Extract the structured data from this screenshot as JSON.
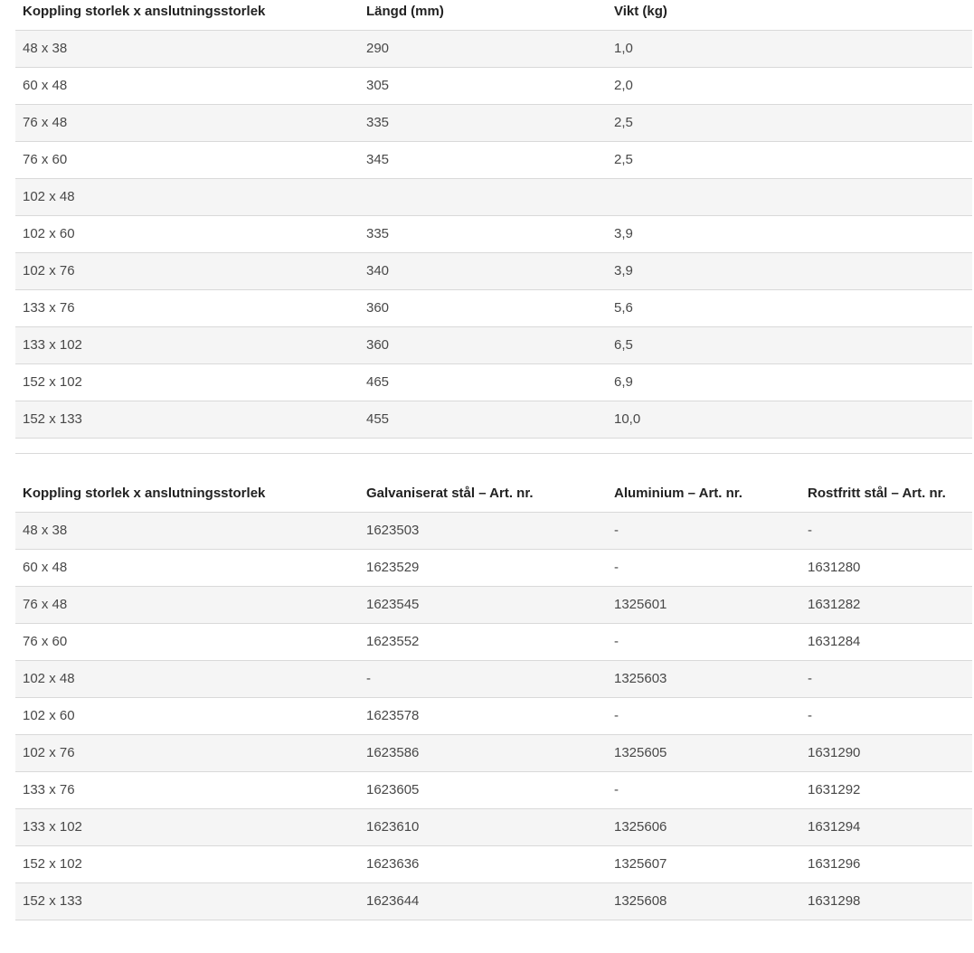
{
  "colors": {
    "stripe_row_background": "#f5f5f5",
    "row_border": "#d9d9d9",
    "header_text": "#222222",
    "body_text": "#484848",
    "page_background": "#ffffff"
  },
  "tables": [
    {
      "name": "dimensions-table",
      "headers": [
        "Koppling storlek x anslutningsstorlek",
        "Längd (mm)",
        "Vikt (kg)"
      ],
      "rows": [
        [
          "48 x 38",
          "290",
          "1,0"
        ],
        [
          "60 x 48",
          "305",
          "2,0"
        ],
        [
          "76 x 48",
          "335",
          "2,5"
        ],
        [
          "76 x 60",
          "345",
          "2,5"
        ],
        [
          "102 x 48",
          "",
          ""
        ],
        [
          "102 x 60",
          "335",
          "3,9"
        ],
        [
          "102 x 76",
          "340",
          "3,9"
        ],
        [
          "133 x 76",
          "360",
          "5,6"
        ],
        [
          "133 x 102",
          "360",
          "6,5"
        ],
        [
          "152 x 102",
          "465",
          "6,9"
        ],
        [
          "152 x 133",
          "455",
          "10,0"
        ],
        [
          "",
          "",
          ""
        ]
      ]
    },
    {
      "name": "article-numbers-table",
      "headers": [
        "Koppling storlek x anslutningsstorlek",
        "Galvaniserat stål – Art. nr.",
        "Aluminium – Art. nr.",
        "Rostfritt stål – Art. nr."
      ],
      "rows": [
        [
          "48 x 38",
          "1623503",
          "-",
          "-"
        ],
        [
          "60 x 48",
          "1623529",
          "-",
          "1631280"
        ],
        [
          "76 x 48",
          "1623545",
          "1325601",
          "1631282"
        ],
        [
          "76 x 60",
          "1623552",
          "-",
          "1631284"
        ],
        [
          "102 x 48",
          "-",
          "1325603",
          "-"
        ],
        [
          "102 x 60",
          "1623578",
          "-",
          "-"
        ],
        [
          "102 x 76",
          "1623586",
          "1325605",
          "1631290"
        ],
        [
          "133 x 76",
          "1623605",
          "-",
          "1631292"
        ],
        [
          "133 x 102",
          "1623610",
          "1325606",
          "1631294"
        ],
        [
          "152 x 102",
          "1623636",
          "1325607",
          "1631296"
        ],
        [
          "152 x 133",
          "1623644",
          "1325608",
          "1631298"
        ]
      ]
    }
  ]
}
